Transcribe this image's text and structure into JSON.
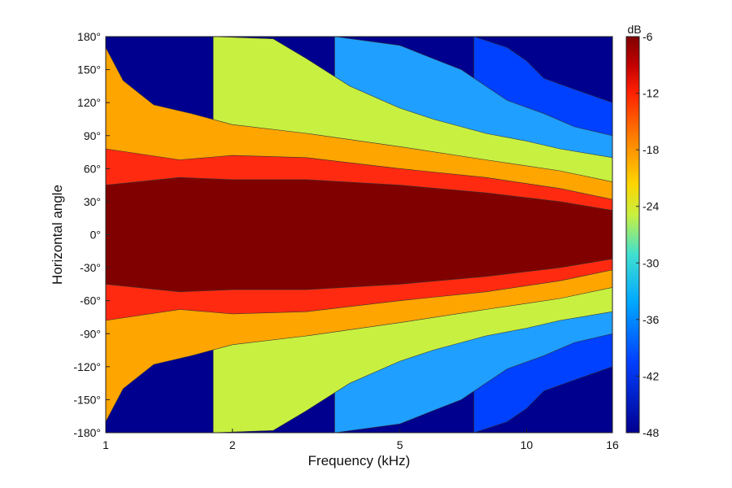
{
  "chart_data": {
    "type": "heatmap",
    "subtype": "filled-contour",
    "xlabel": "Frequency (kHz)",
    "ylabel": "Horizontal angle",
    "x_scale": "log",
    "xlim": [
      1,
      16
    ],
    "ylim": [
      -180,
      180
    ],
    "x_ticks": [
      1,
      2,
      5,
      10,
      16
    ],
    "x_tick_labels": [
      "1",
      "2",
      "5",
      "10",
      "16"
    ],
    "y_ticks": [
      180,
      150,
      120,
      90,
      60,
      30,
      0,
      -30,
      -60,
      -90,
      -120,
      -150,
      -180
    ],
    "y_tick_labels": [
      "180°",
      "150°",
      "120°",
      "90°",
      "60°",
      "30°",
      "0°",
      "-30°",
      "-60°",
      "-90°",
      "-120°",
      "-150°",
      "-180°"
    ],
    "colorbar": {
      "unit": "dB",
      "range": [
        -48,
        -6
      ],
      "ticks": [
        -6,
        -12,
        -18,
        -24,
        -30,
        -36,
        -42,
        -48
      ],
      "tick_labels": [
        "-6",
        "-12",
        "-18",
        "-24",
        "-30",
        "-36",
        "-42",
        "-48"
      ],
      "colormap": "jet"
    },
    "contour_levels": [
      -48,
      -42,
      -36,
      -33,
      -30,
      -24,
      -18,
      -12,
      -6
    ],
    "level_colors": [
      "#00008f",
      "#0040ff",
      "#1f9fff",
      "#40e0d0",
      "#c8f040",
      "#ffa500",
      "#ff2a10",
      "#800000"
    ],
    "grid": false,
    "iso_contours": [
      {
        "level": -12,
        "points": [
          [
            1,
            45
          ],
          [
            1.5,
            52
          ],
          [
            2,
            50
          ],
          [
            3,
            50
          ],
          [
            5,
            45
          ],
          [
            8,
            38
          ],
          [
            12,
            30
          ],
          [
            16,
            22
          ]
        ]
      },
      {
        "level": -18,
        "points": [
          [
            1,
            78
          ],
          [
            1.5,
            68
          ],
          [
            2,
            72
          ],
          [
            3,
            70
          ],
          [
            5,
            60
          ],
          [
            8,
            52
          ],
          [
            12,
            42
          ],
          [
            16,
            32
          ]
        ]
      },
      {
        "level": -24,
        "points": [
          [
            1,
            170
          ],
          [
            1.1,
            140
          ],
          [
            1.3,
            118
          ],
          [
            1.6,
            110
          ],
          [
            2,
            100
          ],
          [
            3,
            92
          ],
          [
            5,
            80
          ],
          [
            8,
            68
          ],
          [
            12,
            58
          ],
          [
            16,
            48
          ]
        ]
      },
      {
        "level": -30,
        "points": [
          [
            1.8,
            180
          ],
          [
            2.5,
            178
          ],
          [
            3,
            160
          ],
          [
            3.8,
            135
          ],
          [
            5,
            115
          ],
          [
            6,
            105
          ],
          [
            8,
            92
          ],
          [
            10,
            85
          ],
          [
            12,
            78
          ],
          [
            16,
            70
          ]
        ]
      },
      {
        "level": -36,
        "points": [
          [
            3.5,
            180
          ],
          [
            5,
            172
          ],
          [
            6,
            160
          ],
          [
            7,
            150
          ],
          [
            8,
            135
          ],
          [
            9,
            122
          ],
          [
            11,
            110
          ],
          [
            13,
            98
          ],
          [
            16,
            90
          ]
        ]
      },
      {
        "level": -42,
        "points": [
          [
            7.5,
            180
          ],
          [
            9,
            170
          ],
          [
            10,
            158
          ],
          [
            11,
            142
          ],
          [
            13,
            132
          ],
          [
            16,
            120
          ]
        ]
      }
    ]
  }
}
